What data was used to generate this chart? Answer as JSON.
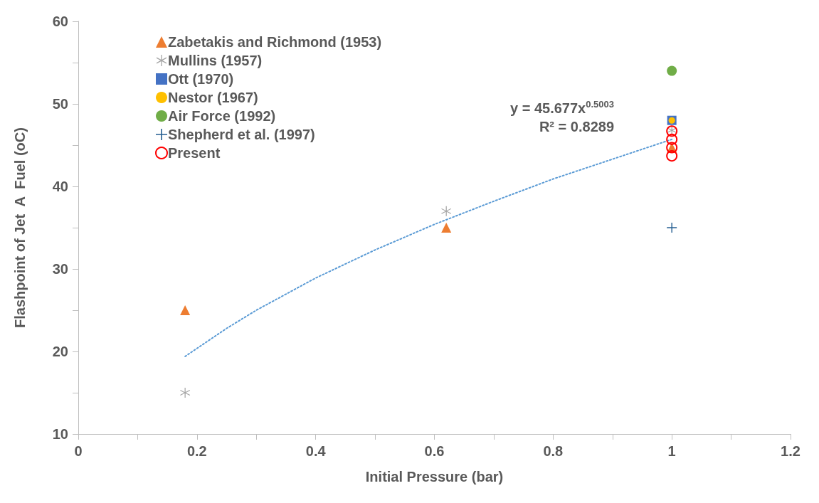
{
  "chart_data": {
    "type": "scatter",
    "xlabel": "Initial Pressure (bar)",
    "ylabel": "Flashpoint of Jet  A  Fuel (oC)",
    "annotations": [
      "y = 45.677x$^{0.5003}$",
      "R² = 0.8289"
    ],
    "xlim": [
      0,
      1.2
    ],
    "xticks": [
      0,
      {
        "value": 0.1,
        "label": null
      },
      0.2,
      {
        "value": 0.3,
        "label": null
      },
      0.4,
      {
        "value": 0.5,
        "label": null
      },
      0.6,
      {
        "value": 0.7,
        "label": null
      },
      0.8,
      {
        "value": 0.9,
        "label": null
      },
      1,
      {
        "value": 1.1,
        "label": null
      },
      1.2
    ],
    "ylim": [
      10,
      60
    ],
    "yticks": [
      10,
      {
        "value": 15,
        "label": null
      },
      20,
      {
        "value": 25,
        "label": null
      },
      30,
      {
        "value": 35,
        "label": null
      },
      40,
      {
        "value": 45,
        "label": null
      },
      50,
      {
        "value": 55,
        "label": null
      },
      60
    ],
    "grid": false,
    "legend": "top left",
    "series": [
      {
        "name": "Zabetakis and Richmond (1953)",
        "color": "#ed7d31",
        "marker": "triangle",
        "x": [
          0.18,
          0.62,
          1
        ],
        "values": [
          25,
          35,
          44.7
        ]
      },
      {
        "name": "Mullins (1957)",
        "color": "#a5a5a5",
        "marker": "cross",
        "x": [
          0.18,
          0.62,
          1
        ],
        "values": [
          15,
          37,
          46.8
        ]
      },
      {
        "name": "Ott (1970)",
        "color": "#4472c4",
        "marker": "square",
        "x": [
          1
        ],
        "values": [
          48
        ]
      },
      {
        "name": "Nestor (1967)",
        "color": "#ffc000",
        "marker": "circle",
        "x": [
          1
        ],
        "values": [
          48
        ]
      },
      {
        "name": "Air Force (1992)",
        "color": "#70ad47",
        "marker": "circle",
        "x": [
          1
        ],
        "values": [
          54
        ]
      },
      {
        "name": "Shepherd et al. (1997)",
        "color": "#255e91",
        "marker": "cross",
        "x": [
          1
        ],
        "values": [
          35
        ]
      },
      {
        "name": "Present",
        "color": "#ff0000",
        "marker": "circle",
        "x": [
          1,
          1,
          1,
          1
        ],
        "values": [
          46.7,
          45.7,
          44.7,
          43.7
        ]
      },
      {
        "type": "line",
        "color": "#5b9bd5",
        "marker": "none",
        "line_style": "dotted",
        "x": [
          0.18,
          0.25,
          0.3,
          0.4,
          0.5,
          0.6,
          0.7,
          0.8,
          0.9,
          1
        ],
        "values": [
          19.4,
          22.8,
          25.0,
          28.9,
          32.3,
          35.4,
          38.2,
          40.9,
          43.3,
          45.7
        ]
      }
    ]
  }
}
